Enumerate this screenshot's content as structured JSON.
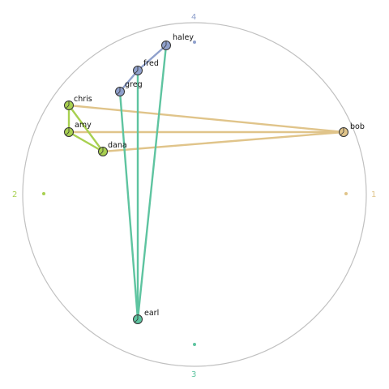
{
  "anchors": [
    {
      "label": "1",
      "color": "#e0c48a"
    },
    {
      "label": "2",
      "color": "#a8d050"
    },
    {
      "label": "3",
      "color": "#5ec4a0"
    },
    {
      "label": "4",
      "color": "#8fa0cc"
    }
  ],
  "nodes": [
    {
      "id": "bob",
      "label": "bob",
      "group": "1"
    },
    {
      "id": "chris",
      "label": "chris",
      "group": "2"
    },
    {
      "id": "amy",
      "label": "amy",
      "group": "2"
    },
    {
      "id": "dana",
      "label": "dana",
      "group": "2"
    },
    {
      "id": "earl",
      "label": "earl",
      "group": "3"
    },
    {
      "id": "haley",
      "label": "haley",
      "group": "4"
    },
    {
      "id": "fred",
      "label": "fred",
      "group": "4"
    },
    {
      "id": "greg",
      "label": "greg",
      "group": "4"
    }
  ],
  "edges": [
    {
      "from": "bob",
      "to": "chris",
      "group": "1"
    },
    {
      "from": "bob",
      "to": "amy",
      "group": "1"
    },
    {
      "from": "bob",
      "to": "dana",
      "group": "1"
    },
    {
      "from": "chris",
      "to": "amy",
      "group": "2"
    },
    {
      "from": "chris",
      "to": "dana",
      "group": "2"
    },
    {
      "from": "amy",
      "to": "dana",
      "group": "2"
    },
    {
      "from": "earl",
      "to": "haley",
      "group": "3"
    },
    {
      "from": "earl",
      "to": "fred",
      "group": "3"
    },
    {
      "from": "earl",
      "to": "greg",
      "group": "3"
    },
    {
      "from": "haley",
      "to": "fred",
      "group": "4"
    },
    {
      "from": "fred",
      "to": "greg",
      "group": "4"
    }
  ]
}
